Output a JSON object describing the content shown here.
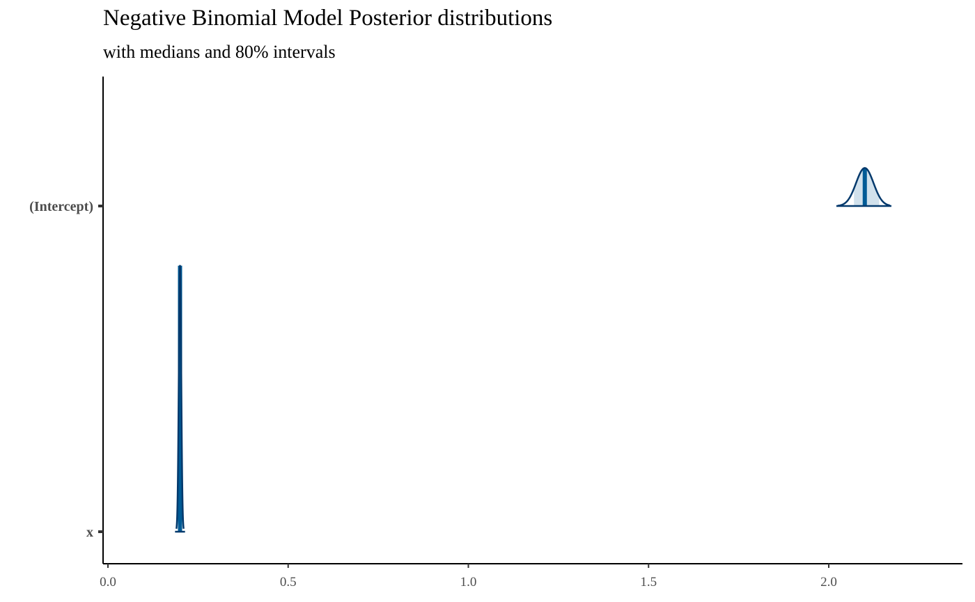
{
  "chart_data": {
    "type": "area",
    "title": "Negative Binomial Model Posterior distributions",
    "subtitle": "with medians and 80% intervals",
    "xlabel": "",
    "ylabel": "",
    "xlim": [
      -0.01,
      2.37
    ],
    "x_ticks": [
      "0.0",
      "0.5",
      "1.0",
      "1.5",
      "2.0"
    ],
    "x_tick_values": [
      0.0,
      0.5,
      1.0,
      1.5,
      2.0
    ],
    "categories": [
      "(Intercept)",
      "x"
    ],
    "grid": false,
    "series": [
      {
        "name": "(Intercept)",
        "median": 2.1,
        "interval_80": [
          2.07,
          2.14
        ],
        "range": [
          2.025,
          2.17
        ],
        "density_peak_relative": 0.13
      },
      {
        "name": "x",
        "median": 0.2,
        "interval_80": [
          0.195,
          0.205
        ],
        "range": [
          0.19,
          0.21
        ],
        "density_peak_relative": 0.91
      }
    ],
    "colors": {
      "line": "#03396c",
      "median": "#005b96",
      "interval_fill": "#d1e1ec"
    }
  }
}
